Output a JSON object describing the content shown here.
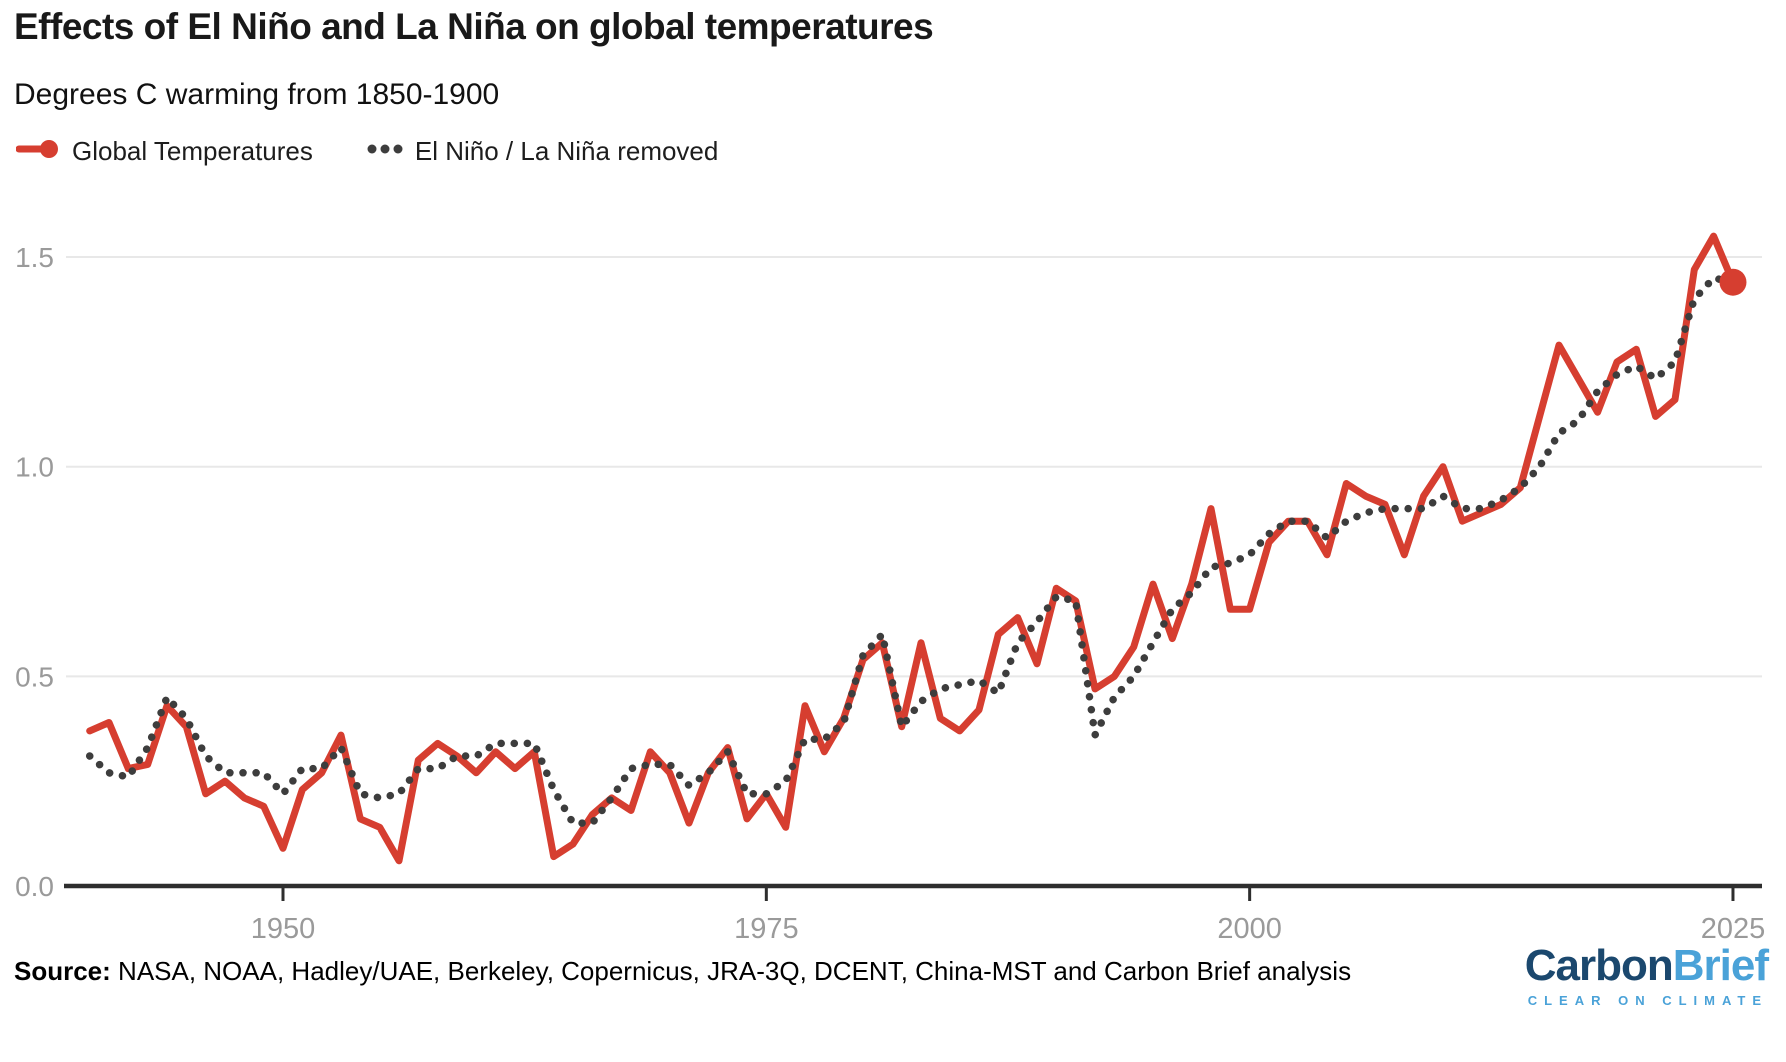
{
  "header": {
    "title": "Effects of El Niño and La Niña on global temperatures",
    "subtitle": "Degrees C warming from 1850-1900"
  },
  "legend": [
    {
      "label": "Global Temperatures"
    },
    {
      "label": "El Niño / La Niña removed"
    }
  ],
  "footer": {
    "source_label": "Source:",
    "source_text": " NASA, NOAA, Hadley/UAE, Berkeley, Copernicus, JRA-3Q, DCENT, China-MST and Carbon Brief analysis",
    "logo": {
      "part1": "Carbon",
      "part2": "Brief",
      "tagline": "CLEAR ON CLIMATE"
    }
  },
  "colors": {
    "accent_red": "#d63e30",
    "dotted_gray": "#3d3d3d",
    "grid": "#e8e8e8",
    "axis": "#2e2e2e",
    "tick_text": "#9a9a9a",
    "logo_dark": "#1b486e",
    "logo_light": "#4aa2d8"
  },
  "chart_data": {
    "type": "line",
    "title": "Effects of El Niño and La Niña on global temperatures",
    "subtitle": "Degrees C warming from 1850-1900",
    "xlabel": "",
    "ylabel": "Degrees C warming from 1850-1900",
    "grid": "horizontal",
    "legend_position": "top-left",
    "xlim": [
      1939,
      2026.5
    ],
    "ylim": [
      0,
      1.62
    ],
    "xticks": [
      {
        "value": 1950,
        "label": "1950"
      },
      {
        "value": 1975,
        "label": "1975"
      },
      {
        "value": 2000,
        "label": "2000"
      },
      {
        "value": 2025,
        "label": "2025"
      }
    ],
    "yticks": [
      {
        "value": 0.0,
        "label": "0.0"
      },
      {
        "value": 0.5,
        "label": "0.5"
      },
      {
        "value": 1.0,
        "label": "1.0"
      },
      {
        "value": 1.5,
        "label": "1.5"
      }
    ],
    "x": [
      1940,
      1941,
      1942,
      1943,
      1944,
      1945,
      1946,
      1947,
      1948,
      1949,
      1950,
      1951,
      1952,
      1953,
      1954,
      1955,
      1956,
      1957,
      1958,
      1959,
      1960,
      1961,
      1962,
      1963,
      1964,
      1965,
      1966,
      1967,
      1968,
      1969,
      1970,
      1971,
      1972,
      1973,
      1974,
      1975,
      1976,
      1977,
      1978,
      1979,
      1980,
      1981,
      1982,
      1983,
      1984,
      1985,
      1986,
      1987,
      1988,
      1989,
      1990,
      1991,
      1992,
      1993,
      1994,
      1995,
      1996,
      1997,
      1998,
      1999,
      2000,
      2001,
      2002,
      2003,
      2004,
      2005,
      2006,
      2007,
      2008,
      2009,
      2010,
      2011,
      2012,
      2013,
      2014,
      2015,
      2016,
      2017,
      2018,
      2019,
      2020,
      2021,
      2022,
      2023,
      2024,
      2025
    ],
    "series": [
      {
        "name": "Global Temperatures",
        "style": "solid",
        "color": "#d63e30",
        "values": [
          0.37,
          0.39,
          0.28,
          0.29,
          0.43,
          0.38,
          0.22,
          0.25,
          0.21,
          0.19,
          0.09,
          0.23,
          0.27,
          0.36,
          0.16,
          0.14,
          0.06,
          0.3,
          0.34,
          0.31,
          0.27,
          0.32,
          0.28,
          0.32,
          0.07,
          0.1,
          0.17,
          0.21,
          0.18,
          0.32,
          0.27,
          0.15,
          0.27,
          0.33,
          0.16,
          0.22,
          0.14,
          0.43,
          0.32,
          0.4,
          0.54,
          0.58,
          0.38,
          0.58,
          0.4,
          0.37,
          0.42,
          0.6,
          0.64,
          0.53,
          0.71,
          0.68,
          0.47,
          0.5,
          0.57,
          0.72,
          0.59,
          0.72,
          0.9,
          0.66,
          0.66,
          0.82,
          0.87,
          0.87,
          0.79,
          0.96,
          0.93,
          0.91,
          0.79,
          0.93,
          1.0,
          0.87,
          0.89,
          0.91,
          0.95,
          1.12,
          1.29,
          1.21,
          1.13,
          1.25,
          1.28,
          1.12,
          1.16,
          1.47,
          1.55,
          1.44
        ]
      },
      {
        "name": "El Niño / La Niña removed",
        "style": "dotted",
        "color": "#3d3d3d",
        "values": [
          0.31,
          0.27,
          0.26,
          0.33,
          0.45,
          0.4,
          0.31,
          0.27,
          0.27,
          0.27,
          0.22,
          0.28,
          0.28,
          0.33,
          0.22,
          0.21,
          0.22,
          0.28,
          0.28,
          0.31,
          0.31,
          0.34,
          0.34,
          0.34,
          0.23,
          0.15,
          0.15,
          0.21,
          0.28,
          0.29,
          0.29,
          0.24,
          0.27,
          0.32,
          0.22,
          0.22,
          0.25,
          0.35,
          0.35,
          0.39,
          0.55,
          0.6,
          0.38,
          0.44,
          0.47,
          0.48,
          0.49,
          0.46,
          0.58,
          0.63,
          0.69,
          0.68,
          0.36,
          0.45,
          0.5,
          0.58,
          0.66,
          0.7,
          0.76,
          0.77,
          0.79,
          0.84,
          0.87,
          0.87,
          0.83,
          0.87,
          0.89,
          0.9,
          0.9,
          0.9,
          0.93,
          0.9,
          0.9,
          0.92,
          0.95,
          1.0,
          1.08,
          1.11,
          1.18,
          1.22,
          1.24,
          1.21,
          1.25,
          1.4,
          1.45,
          1.44
        ]
      }
    ],
    "end_marker": {
      "series": "Global Temperatures",
      "x": 2025,
      "y": 1.44
    }
  }
}
